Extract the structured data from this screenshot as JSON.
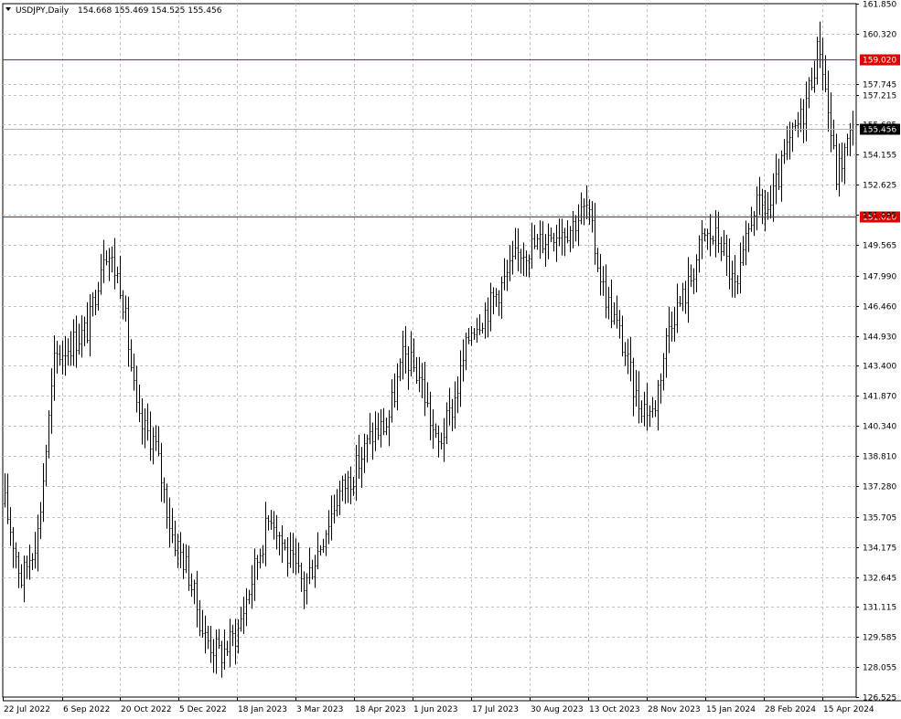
{
  "window": {
    "symbol": "USDJPY,Daily",
    "ohlc": [
      "154.668",
      "155.469",
      "154.525",
      "155.456"
    ]
  },
  "colors": {
    "background": "#ffffff",
    "grid": "#c0c0c0",
    "bars": "#000000",
    "level_line": "#e00000",
    "current_line": "#b4b4b4",
    "current_label_bg": "#000000",
    "current_label_text": "#ffffff"
  },
  "chart_data": {
    "type": "line",
    "style": "ohlc-bars",
    "title": "USDJPY,Daily",
    "ylim": [
      126.525,
      161.85
    ],
    "grid": true,
    "yticks": [
      "161.850",
      "160.320",
      "157.745",
      "157.215",
      "155.685",
      "154.155",
      "152.625",
      "151.095",
      "149.565",
      "147.990",
      "146.460",
      "144.930",
      "143.400",
      "141.870",
      "140.340",
      "138.810",
      "137.280",
      "135.705",
      "134.175",
      "132.645",
      "131.115",
      "129.585",
      "128.055",
      "126.525"
    ],
    "xticks": [
      "22 Jul 2022",
      "6 Sep 2022",
      "20 Oct 2022",
      "5 Dec 2022",
      "18 Jan 2023",
      "3 Mar 2023",
      "18 Apr 2023",
      "1 Jun 2023",
      "17 Jul 2023",
      "30 Aug 2023",
      "13 Oct 2023",
      "28 Nov 2023",
      "15 Jan 2024",
      "28 Feb 2024",
      "15 Apr 2024"
    ],
    "levels": [
      {
        "value": 159.02,
        "label": "159.020"
      },
      {
        "value": 151.02,
        "label": "151.020"
      }
    ],
    "current": {
      "value": 155.456,
      "label": "155.456"
    },
    "x": [
      "2022-07-22",
      "2022-08-05",
      "2022-08-22",
      "2022-09-06",
      "2022-09-21",
      "2022-10-05",
      "2022-10-20",
      "2022-11-01",
      "2022-11-10",
      "2022-11-22",
      "2022-12-05",
      "2022-12-20",
      "2023-01-03",
      "2023-01-18",
      "2023-02-01",
      "2023-02-15",
      "2023-03-03",
      "2023-03-15",
      "2023-03-30",
      "2023-04-18",
      "2023-05-02",
      "2023-05-16",
      "2023-06-01",
      "2023-06-14",
      "2023-06-29",
      "2023-07-06",
      "2023-07-17",
      "2023-07-31",
      "2023-08-15",
      "2023-08-30",
      "2023-09-14",
      "2023-09-28",
      "2023-10-13",
      "2023-10-23",
      "2023-11-01",
      "2023-11-13",
      "2023-11-28",
      "2023-12-07",
      "2023-12-14",
      "2023-12-28",
      "2024-01-15",
      "2024-01-30",
      "2024-02-13",
      "2024-02-28",
      "2024-03-08",
      "2024-03-20",
      "2024-04-02",
      "2024-04-15",
      "2024-04-26",
      "2024-04-29",
      "2024-05-03",
      "2024-05-08"
    ],
    "series": [
      {
        "values": [
          136.4,
          132.5,
          135.0,
          143.8,
          144.6,
          145.3,
          149.6,
          147.5,
          140.5,
          139.6,
          135.0,
          133.0,
          129.6,
          128.7,
          129.9,
          133.0,
          136.0,
          133.7,
          132.2,
          134.4,
          136.8,
          138.0,
          139.8,
          140.5,
          144.0,
          142.8,
          139.2,
          141.5,
          145.3,
          146.3,
          147.7,
          149.3,
          149.6,
          150.3,
          150.5,
          151.5,
          147.3,
          145.0,
          141.7,
          141.0,
          145.8,
          147.2,
          150.0,
          149.9,
          147.0,
          151.5,
          151.4,
          154.3,
          156.3,
          159.9,
          153.1,
          155.456
        ]
      }
    ]
  }
}
